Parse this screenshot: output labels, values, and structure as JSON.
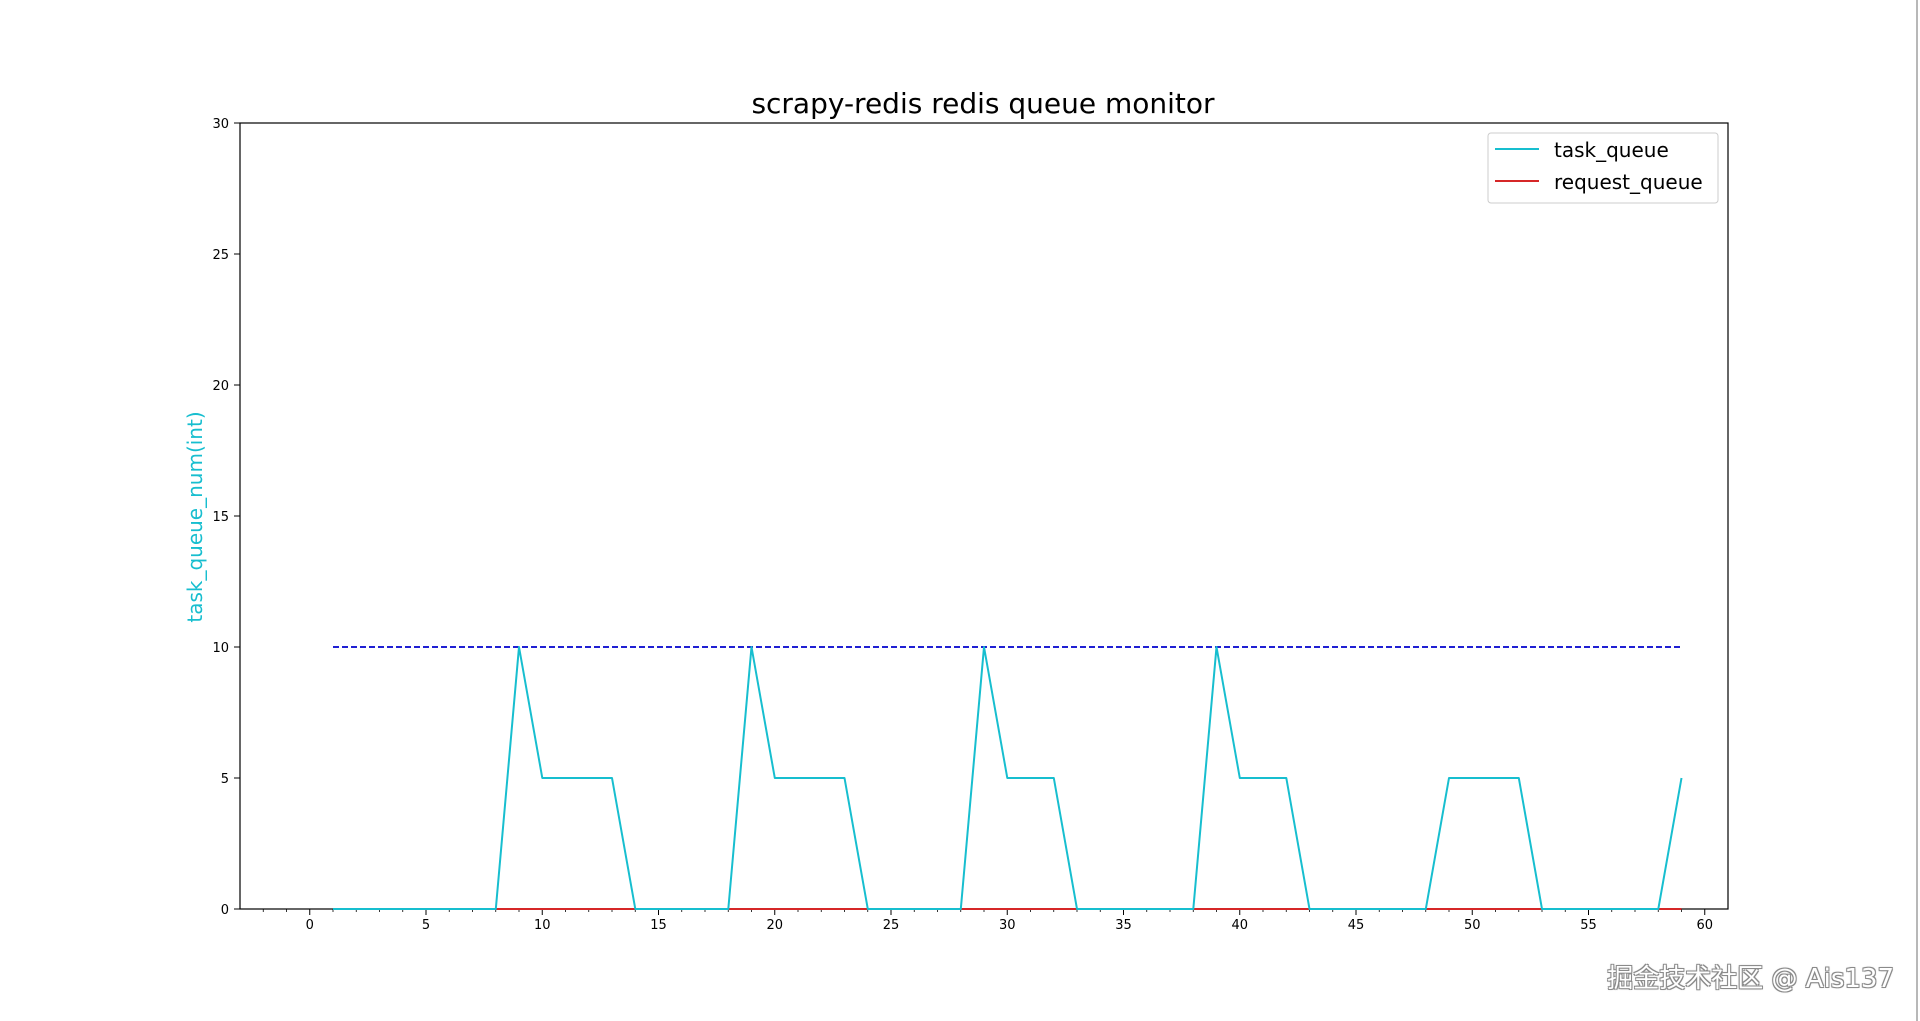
{
  "watermark": "掘金技术社区 @ Ais137",
  "chart_data": {
    "type": "line",
    "title": "scrapy-redis redis queue monitor",
    "xlabel": "",
    "ylabel": "task_queue_num(int)",
    "xlim": [
      -3,
      61
    ],
    "ylim": [
      0,
      30
    ],
    "xticks": [
      0,
      5,
      10,
      15,
      20,
      25,
      30,
      35,
      40,
      45,
      50,
      55,
      60
    ],
    "yticks": [
      0,
      5,
      10,
      15,
      20,
      25,
      30
    ],
    "legend_position": "top-right",
    "colors": {
      "task_queue": "#17becf",
      "request_queue": "#d62728",
      "threshold": "#0000cd",
      "ylabel": "#17becf"
    },
    "series": [
      {
        "name": "task_queue",
        "style": "solid",
        "x": [
          1,
          2,
          3,
          4,
          5,
          6,
          7,
          8,
          9,
          10,
          11,
          12,
          13,
          14,
          15,
          16,
          17,
          18,
          19,
          20,
          21,
          22,
          23,
          24,
          25,
          26,
          27,
          28,
          29,
          30,
          31,
          32,
          33,
          34,
          35,
          36,
          37,
          38,
          39,
          40,
          41,
          42,
          43,
          44,
          45,
          46,
          47,
          48,
          49,
          50,
          51,
          52,
          53,
          54,
          55,
          56,
          57,
          58,
          59
        ],
        "values": [
          0,
          0,
          0,
          0,
          0,
          0,
          0,
          0,
          10,
          5,
          5,
          5,
          5,
          0,
          0,
          0,
          0,
          0,
          10,
          5,
          5,
          5,
          5,
          0,
          0,
          0,
          0,
          0,
          10,
          5,
          5,
          5,
          0,
          0,
          0,
          0,
          0,
          0,
          10,
          5,
          5,
          5,
          0,
          0,
          0,
          0,
          0,
          0,
          5,
          5,
          5,
          5,
          0,
          0,
          0,
          0,
          0,
          0,
          5
        ]
      },
      {
        "name": "request_queue",
        "style": "solid",
        "x": [
          1,
          59
        ],
        "values": [
          0,
          0
        ]
      },
      {
        "style": "dashed",
        "x": [
          1,
          59
        ],
        "values": [
          10,
          10
        ]
      }
    ]
  }
}
